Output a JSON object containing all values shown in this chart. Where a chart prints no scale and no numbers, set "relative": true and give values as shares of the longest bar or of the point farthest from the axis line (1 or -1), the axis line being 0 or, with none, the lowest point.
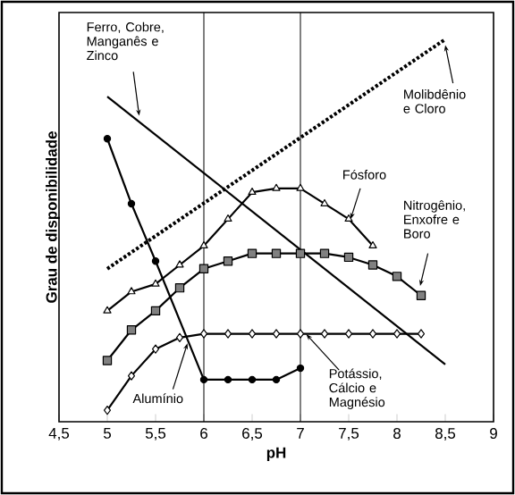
{
  "chart_data": {
    "type": "line",
    "relative": true,
    "xlabel": "pH",
    "ylabel": "Grau de disponibilidade",
    "xlim": [
      4.5,
      9
    ],
    "xticks": [
      {
        "value": 4.5,
        "label": "4,5"
      },
      5,
      {
        "value": 5.5,
        "label": "5,5"
      },
      6,
      {
        "value": 6.5,
        "label": "6,5"
      },
      7,
      {
        "value": 7.5,
        "label": "7,5"
      },
      8,
      {
        "value": 8.5,
        "label": "8,5"
      },
      9
    ],
    "ref_lines": [
      {
        "axis": "x",
        "value": 6,
        "color": "#000000"
      },
      {
        "axis": "x",
        "value": 7,
        "color": "#000000"
      }
    ],
    "grid": false,
    "series": [
      {
        "name": "Ferro, Cobre, Manganês e Zinco",
        "color": "#000000",
        "marker": "none",
        "line_style": "solid",
        "x": [
          5,
          8.5
        ],
        "values": [
          0.85,
          0.15
        ]
      },
      {
        "name": "Molibdênio e Cloro",
        "color": "#000000",
        "marker": "none",
        "line_style": "dotted",
        "x": [
          5,
          8.5
        ],
        "values": [
          0.4,
          1.0
        ]
      },
      {
        "name": "Fósforo",
        "color": "#000000",
        "marker": "triangle",
        "line_style": "solid",
        "x": [
          5,
          5.25,
          5.5,
          5.75,
          6,
          6.25,
          6.5,
          6.75,
          7,
          7.25,
          7.5,
          7.75
        ],
        "values": [
          0.29,
          0.34,
          0.36,
          0.41,
          0.46,
          0.53,
          0.6,
          0.61,
          0.61,
          0.57,
          0.53,
          0.46
        ]
      },
      {
        "name": "Nitrogênio, Enxofre e Boro",
        "color": "#000000",
        "marker": "square",
        "line_style": "solid",
        "x": [
          5,
          5.25,
          5.5,
          5.75,
          6,
          6.25,
          6.5,
          6.75,
          7,
          7.25,
          7.5,
          7.75,
          8,
          8.25
        ],
        "values": [
          0.16,
          0.24,
          0.29,
          0.35,
          0.4,
          0.42,
          0.44,
          0.44,
          0.44,
          0.44,
          0.43,
          0.41,
          0.38,
          0.33
        ]
      },
      {
        "name": "Potássio, Cálcio e Magnésio",
        "color": "#000000",
        "marker": "diamond",
        "line_style": "solid",
        "x": [
          5,
          5.25,
          5.5,
          5.75,
          6,
          6.25,
          6.5,
          6.75,
          7,
          7.25,
          7.5,
          7.75,
          8,
          8.25
        ],
        "values": [
          0.03,
          0.12,
          0.19,
          0.22,
          0.23,
          0.23,
          0.23,
          0.23,
          0.23,
          0.23,
          0.23,
          0.23,
          0.23,
          0.23
        ]
      },
      {
        "name": "Alumínio",
        "color": "#000000",
        "marker": "circle",
        "line_style": "solid",
        "x": [
          5,
          5.25,
          5.5,
          6,
          6.25,
          6.5,
          6.75,
          7
        ],
        "values": [
          0.74,
          0.57,
          0.42,
          0.11,
          0.11,
          0.11,
          0.11,
          0.14
        ]
      }
    ]
  }
}
